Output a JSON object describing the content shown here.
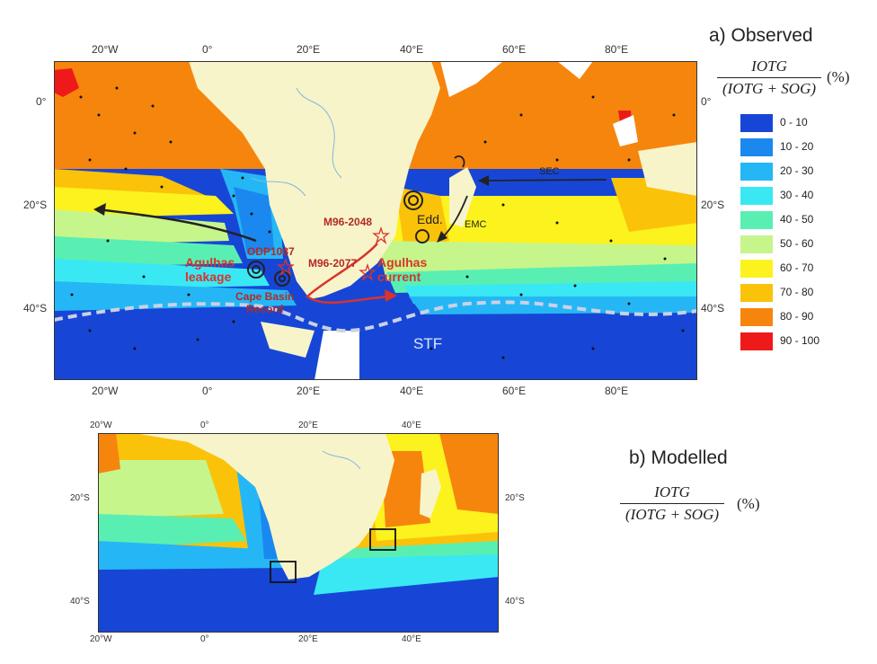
{
  "panel_a": {
    "title": "a) Observed",
    "formula_num": "IOTG",
    "formula_den": "(IOTG + SOG)",
    "formula_unit": "(%)",
    "x_ticks": [
      "20°W",
      "0°",
      "20°E",
      "40°E",
      "60°E",
      "80°E"
    ],
    "y_ticks_left": [
      "0°",
      "20°S",
      "40°S"
    ],
    "y_ticks_right": [
      "0°",
      "20°S",
      "40°S"
    ],
    "labels": {
      "sec": "SEC",
      "emc": "EMC",
      "edd": "Edd.",
      "stf": "STF",
      "m96_2048": "M96-2048",
      "m96_2077": "M96-2077",
      "odp1087": "ODP1087",
      "agulhas_leakage_1": "Agulhas",
      "agulhas_leakage_2": "leakage",
      "agulhas_current_1": "Agulhas",
      "agulhas_current_2": "current",
      "cape_basin_1": "Cape Basin",
      "cape_basin_2": "Record"
    }
  },
  "panel_b": {
    "title": "b) Modelled",
    "formula_num": "IOTG",
    "formula_den": "(IOTG + SOG)",
    "formula_unit": "(%)",
    "x_ticks": [
      "20°W",
      "0°",
      "20°E",
      "40°E"
    ],
    "y_ticks_left": [
      "20°S",
      "40°S"
    ],
    "y_ticks_right": [
      "20°S",
      "40°S"
    ]
  },
  "legend": [
    {
      "label": "0 - 10",
      "color": "#1746d6"
    },
    {
      "label": "10 - 20",
      "color": "#1b88ef"
    },
    {
      "label": "20 - 30",
      "color": "#25b7f5"
    },
    {
      "label": "30 - 40",
      "color": "#3ae8f3"
    },
    {
      "label": "40 - 50",
      "color": "#59efb3"
    },
    {
      "label": "50 - 60",
      "color": "#c6f58b"
    },
    {
      "label": "60 - 70",
      "color": "#fcf21e"
    },
    {
      "label": "70 - 80",
      "color": "#fbc20a"
    },
    {
      "label": "80 - 90",
      "color": "#f6850e"
    },
    {
      "label": "90 - 100",
      "color": "#ee1a1a"
    }
  ],
  "colors": {
    "land": "#f8f4c9",
    "annotation_red": "#d9332b",
    "arrow_black": "#222222",
    "stf_line": "#c9d2e4"
  }
}
